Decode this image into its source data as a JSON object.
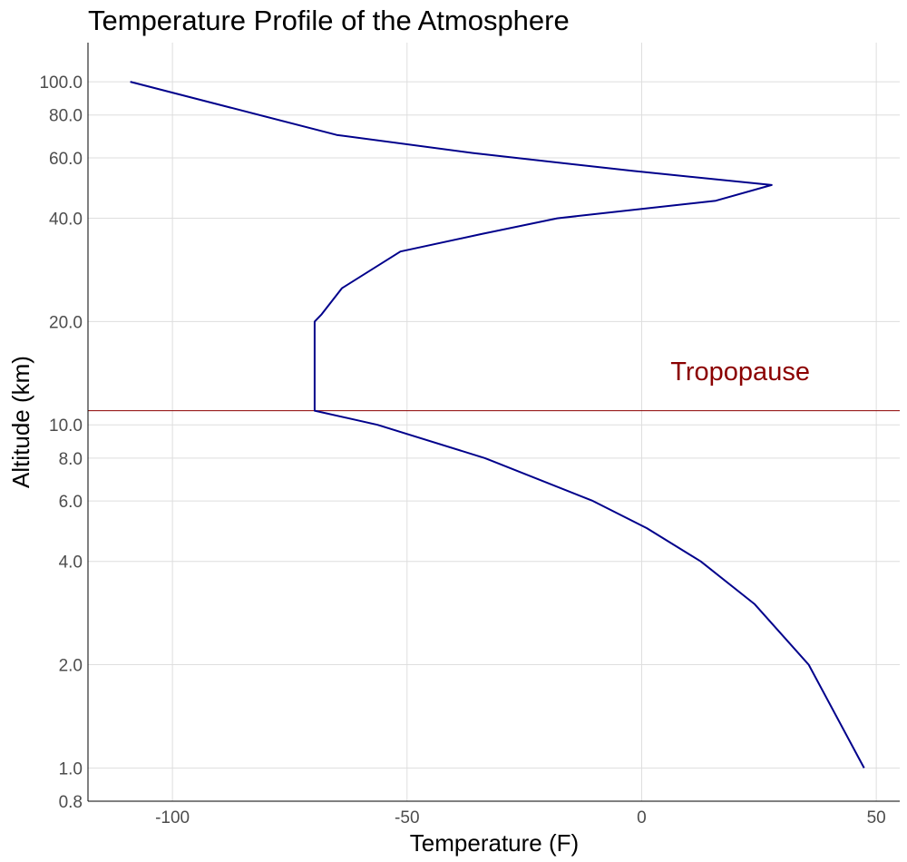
{
  "chart_data": {
    "type": "line",
    "title": "Temperature Profile of the Atmosphere",
    "xlabel": "Temperature (F)",
    "ylabel": "Altitude (km)",
    "xlim": [
      -118,
      55
    ],
    "ylim": [
      0.8,
      130
    ],
    "y_scale": "log",
    "grid": true,
    "x_ticks": [
      -100,
      -50,
      0,
      50
    ],
    "x_tick_labels": [
      "-100",
      "-50",
      "0",
      "50"
    ],
    "y_ticks": [
      0.8,
      1,
      2,
      4,
      6,
      8,
      10,
      20,
      40,
      60,
      80,
      100
    ],
    "y_tick_labels": [
      "0.8",
      "1.0",
      "2.0",
      "4.0",
      "6.0",
      "8.0",
      "10.0",
      "20.0",
      "40.0",
      "60.0",
      "80.0",
      "100.0"
    ],
    "series": [
      {
        "color": "#00008B",
        "points": [
          [
            47.4,
            1
          ],
          [
            35.6,
            2
          ],
          [
            24.1,
            3
          ],
          [
            12.6,
            4
          ],
          [
            1.1,
            5
          ],
          [
            -10.4,
            6
          ],
          [
            -33.4,
            8
          ],
          [
            -56.3,
            10
          ],
          [
            -69.7,
            11
          ],
          [
            -69.7,
            15
          ],
          [
            -69.7,
            20
          ],
          [
            -68.2,
            21
          ],
          [
            -63.9,
            25
          ],
          [
            -51.4,
            32
          ],
          [
            -34.1,
            36
          ],
          [
            -18.0,
            40
          ],
          [
            15.8,
            45
          ],
          [
            27.7,
            50
          ],
          [
            -2.0,
            55
          ],
          [
            -36.0,
            62
          ],
          [
            -65.0,
            70
          ],
          [
            -109.0,
            100
          ]
        ]
      }
    ],
    "reference_line": {
      "y": 11,
      "color": "#8B0000"
    },
    "annotations": [
      {
        "text": "Tropopause",
        "x": 21,
        "y": 13.5,
        "color": "#8B0000"
      }
    ]
  }
}
